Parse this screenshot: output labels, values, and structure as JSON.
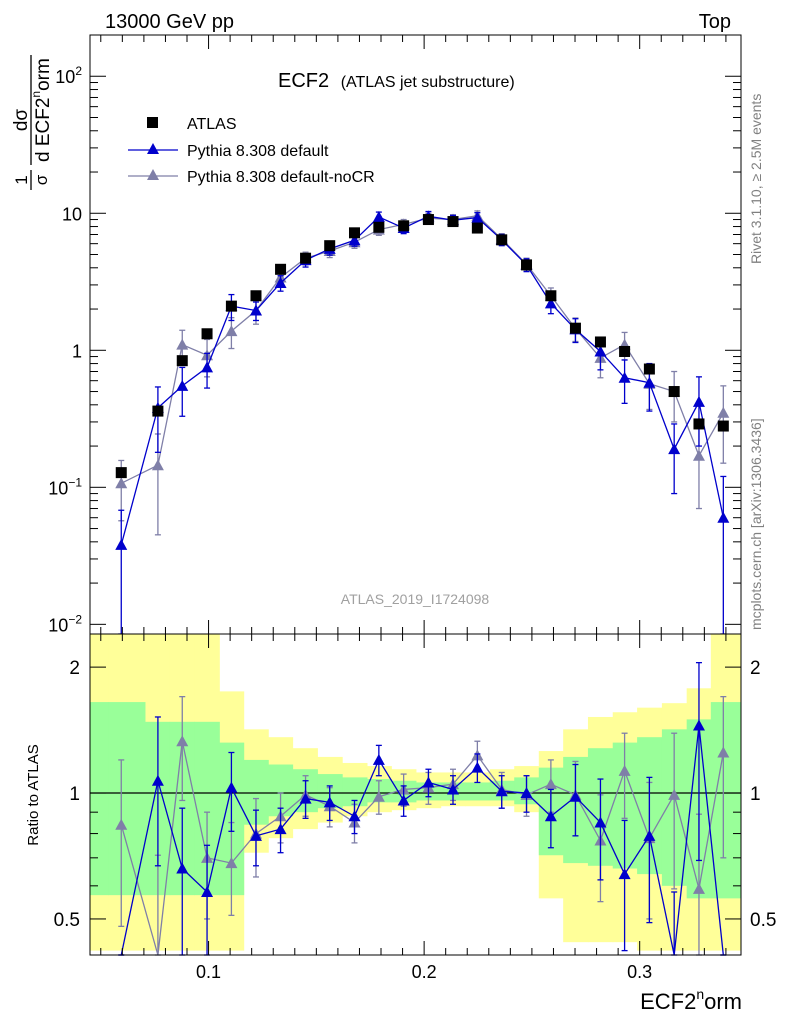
{
  "header": {
    "left": "13000 GeV pp",
    "right": "Top"
  },
  "side_labels": {
    "rivet": "Rivet 3.1.10, ≥ 2.5M events",
    "mcplots": "mcplots.cern.ch [arXiv:1306.3436]"
  },
  "title": {
    "main": "ECF2",
    "sub": "(ATLAS jet substructure)"
  },
  "analysis_id": "ATLAS_2019_I1724098",
  "legend": [
    {
      "label": "ATLAS",
      "marker": "square",
      "color": "#000000"
    },
    {
      "label": "Pythia 8.308 default",
      "marker": "triangle",
      "color": "#0000cc"
    },
    {
      "label": "Pythia 8.308 default-noCR",
      "marker": "triangle",
      "color": "#7f7fa8"
    }
  ],
  "chart_data": [
    {
      "type": "scatter",
      "panel": "main",
      "ylabel_parts": [
        "1",
        "σ",
        "dσ",
        "d ECF2",
        "n",
        "orm"
      ],
      "ylog": true,
      "xlim": [
        0.045,
        0.347
      ],
      "ylim": [
        0.0085,
        200
      ],
      "y_ticks": [
        {
          "v": 0.01,
          "base": "10",
          "exp": "−2"
        },
        {
          "v": 0.1,
          "base": "10",
          "exp": "−1"
        },
        {
          "v": 1,
          "base": "1",
          "exp": ""
        },
        {
          "v": 10,
          "base": "10",
          "exp": ""
        },
        {
          "v": 100,
          "base": "10",
          "exp": "2"
        }
      ],
      "series": [
        {
          "name": "ATLAS",
          "x": [
            0.0595,
            0.0765,
            0.0878,
            0.0993,
            0.1106,
            0.122,
            0.1334,
            0.145,
            0.1562,
            0.1677,
            0.179,
            0.1905,
            0.202,
            0.2134,
            0.2247,
            0.236,
            0.2475,
            0.2588,
            0.2702,
            0.2818,
            0.293,
            0.3045,
            0.316,
            0.3275,
            0.3388
          ],
          "values": [
            0.128,
            0.36,
            0.84,
            1.32,
            2.1,
            2.5,
            3.9,
            4.7,
            5.8,
            7.2,
            7.9,
            8.1,
            9.0,
            8.7,
            7.8,
            6.4,
            4.2,
            2.5,
            1.45,
            1.15,
            0.98,
            0.73,
            0.5,
            0.29,
            0.28
          ]
        },
        {
          "name": "Pythia 8.308 default",
          "x": [
            0.0595,
            0.0765,
            0.0878,
            0.0993,
            0.1106,
            0.122,
            0.1334,
            0.145,
            0.1562,
            0.1677,
            0.179,
            0.1905,
            0.202,
            0.2134,
            0.2247,
            0.236,
            0.2475,
            0.2588,
            0.2702,
            0.2818,
            0.293,
            0.3045,
            0.316,
            0.3275,
            0.3388
          ],
          "values": [
            0.038,
            0.38,
            0.55,
            0.75,
            2.1,
            1.95,
            3.1,
            4.55,
            5.5,
            6.35,
            9.4,
            7.8,
            9.5,
            8.9,
            9.3,
            6.4,
            4.2,
            2.2,
            1.42,
            0.98,
            0.63,
            0.58,
            0.19,
            0.42,
            0.06
          ],
          "yerr_low": [
            0.038,
            0.2,
            0.22,
            0.22,
            0.45,
            0.3,
            0.4,
            0.5,
            0.55,
            0.6,
            0.8,
            0.7,
            0.8,
            0.75,
            0.8,
            0.6,
            0.45,
            0.35,
            0.28,
            0.26,
            0.22,
            0.22,
            0.1,
            0.22,
            0.06
          ],
          "yerr_high": [
            0.03,
            0.16,
            0.2,
            0.2,
            0.45,
            0.3,
            0.4,
            0.5,
            0.55,
            0.6,
            0.8,
            0.7,
            0.8,
            0.75,
            0.8,
            0.6,
            0.45,
            0.35,
            0.28,
            0.26,
            0.22,
            0.22,
            0.1,
            0.22,
            0.06
          ]
        },
        {
          "name": "Pythia 8.308 default-noCR",
          "x": [
            0.0595,
            0.0765,
            0.0878,
            0.0993,
            0.1106,
            0.122,
            0.1334,
            0.145,
            0.1562,
            0.1677,
            0.179,
            0.1905,
            0.202,
            0.2134,
            0.2247,
            0.236,
            0.2475,
            0.2588,
            0.2702,
            0.2818,
            0.293,
            0.3045,
            0.316,
            0.3275,
            0.3388
          ],
          "values": [
            0.107,
            0.145,
            1.1,
            0.92,
            1.38,
            1.95,
            3.4,
            4.7,
            5.3,
            6.15,
            7.6,
            8.3,
            9.2,
            9.0,
            9.6,
            6.5,
            4.25,
            2.5,
            1.44,
            0.88,
            1.1,
            0.57,
            0.5,
            0.17,
            0.35
          ],
          "yerr_low": [
            0.05,
            0.1,
            0.3,
            0.28,
            0.35,
            0.4,
            0.45,
            0.5,
            0.55,
            0.6,
            0.7,
            0.7,
            0.8,
            0.75,
            0.8,
            0.6,
            0.45,
            0.35,
            0.28,
            0.25,
            0.25,
            0.2,
            0.2,
            0.1,
            0.2
          ],
          "yerr_high": [
            0.05,
            0.1,
            0.3,
            0.28,
            0.35,
            0.4,
            0.45,
            0.5,
            0.55,
            0.6,
            0.7,
            0.7,
            0.8,
            0.75,
            0.8,
            0.6,
            0.45,
            0.35,
            0.28,
            0.25,
            0.25,
            0.2,
            0.2,
            0.1,
            0.2
          ]
        }
      ]
    },
    {
      "type": "line",
      "panel": "ratio",
      "ylabel": "Ratio to ATLAS",
      "xlabel_parts": [
        "ECF2",
        "n",
        "orm"
      ],
      "ylog": true,
      "xlim": [
        0.045,
        0.347
      ],
      "ylim": [
        0.41,
        2.4
      ],
      "x_ticks": [
        0.1,
        0.2,
        0.3
      ],
      "x_tick_labels": [
        "0.1",
        "0.2",
        "0.3"
      ],
      "y_ticks": [
        0.5,
        1,
        2
      ],
      "y_tick_labels": [
        "0.5",
        "1",
        "2"
      ],
      "bands": {
        "edges": [
          0.045,
          0.0535,
          0.0705,
          0.082,
          0.0935,
          0.105,
          0.1163,
          0.1277,
          0.139,
          0.1505,
          0.162,
          0.1735,
          0.1848,
          0.1962,
          0.2077,
          0.219,
          0.2305,
          0.2418,
          0.2532,
          0.2645,
          0.276,
          0.2875,
          0.2988,
          0.3103,
          0.3218,
          0.333,
          0.347
        ],
        "yellow_low": [
          0.42,
          0.42,
          0.42,
          0.42,
          0.42,
          0.42,
          0.72,
          0.78,
          0.82,
          0.85,
          0.88,
          0.9,
          0.91,
          0.92,
          0.93,
          0.93,
          0.93,
          0.9,
          0.56,
          0.44,
          0.44,
          0.44,
          0.42,
          0.42,
          0.42,
          0.42
        ],
        "yellow_high": [
          2.4,
          2.4,
          2.4,
          2.4,
          2.4,
          1.75,
          1.42,
          1.36,
          1.28,
          1.22,
          1.18,
          1.16,
          1.14,
          1.12,
          1.12,
          1.12,
          1.14,
          1.16,
          1.26,
          1.42,
          1.52,
          1.56,
          1.6,
          1.64,
          1.78,
          2.4
        ],
        "green_low": [
          0.57,
          0.57,
          0.57,
          0.57,
          0.57,
          0.57,
          0.84,
          0.88,
          0.9,
          0.92,
          0.93,
          0.95,
          0.95,
          0.96,
          0.96,
          0.96,
          0.96,
          0.94,
          0.71,
          0.68,
          0.67,
          0.66,
          0.64,
          0.6,
          0.56,
          0.56
        ],
        "green_high": [
          1.65,
          1.65,
          1.48,
          1.48,
          1.48,
          1.32,
          1.2,
          1.17,
          1.14,
          1.11,
          1.09,
          1.08,
          1.07,
          1.06,
          1.06,
          1.06,
          1.07,
          1.09,
          1.15,
          1.22,
          1.28,
          1.32,
          1.36,
          1.42,
          1.5,
          1.65
        ]
      },
      "series": [
        {
          "name": "Pythia 8.308 default",
          "x": [
            0.0595,
            0.0765,
            0.0878,
            0.0993,
            0.1106,
            0.122,
            0.1334,
            0.145,
            0.1562,
            0.1677,
            0.179,
            0.1905,
            0.202,
            0.2134,
            0.2247,
            0.236,
            0.2475,
            0.2588,
            0.2702,
            0.2818,
            0.293,
            0.3045,
            0.316,
            0.3275,
            0.3388
          ],
          "values": [
            0.3,
            1.07,
            0.66,
            0.58,
            1.03,
            0.79,
            0.82,
            0.97,
            0.95,
            0.88,
            1.2,
            0.96,
            1.06,
            1.02,
            1.15,
            1.01,
            1.0,
            0.88,
            0.98,
            0.85,
            0.64,
            0.79,
            0.38,
            1.45,
            0.22
          ],
          "yerr_low": [
            0.1,
            0.4,
            0.26,
            0.17,
            0.22,
            0.12,
            0.1,
            0.1,
            0.09,
            0.08,
            0.1,
            0.08,
            0.08,
            0.08,
            0.09,
            0.09,
            0.1,
            0.14,
            0.19,
            0.23,
            0.22,
            0.3,
            0.2,
            0.76,
            0.1
          ],
          "yerr_high": [
            0.1,
            0.45,
            0.26,
            0.17,
            0.22,
            0.12,
            0.1,
            0.1,
            0.09,
            0.08,
            0.1,
            0.08,
            0.08,
            0.08,
            0.09,
            0.09,
            0.1,
            0.14,
            0.19,
            0.23,
            0.22,
            0.3,
            0.2,
            0.6,
            0.1
          ]
        },
        {
          "name": "Pythia 8.308 default-noCR",
          "x": [
            0.0595,
            0.0765,
            0.0878,
            0.0993,
            0.1106,
            0.122,
            0.1334,
            0.145,
            0.1562,
            0.1677,
            0.179,
            0.1905,
            0.202,
            0.2134,
            0.2247,
            0.236,
            0.2475,
            0.2588,
            0.2702,
            0.2818,
            0.293,
            0.3045,
            0.316,
            0.3275,
            0.3388
          ],
          "values": [
            0.84,
            0.41,
            1.33,
            0.7,
            0.68,
            0.8,
            0.88,
            0.99,
            0.93,
            0.85,
            0.98,
            1.02,
            1.03,
            1.05,
            1.23,
            1.02,
            0.99,
            1.05,
            0.99,
            0.77,
            1.13,
            0.78,
            0.99,
            0.59,
            1.25
          ],
          "yerr_low": [
            0.36,
            0.25,
            0.37,
            0.2,
            0.17,
            0.17,
            0.12,
            0.11,
            0.1,
            0.09,
            0.09,
            0.09,
            0.09,
            0.09,
            0.1,
            0.1,
            0.11,
            0.15,
            0.2,
            0.22,
            0.26,
            0.28,
            0.4,
            0.3,
            0.55
          ],
          "yerr_high": [
            0.36,
            0.3,
            0.37,
            0.2,
            0.17,
            0.17,
            0.12,
            0.11,
            0.1,
            0.09,
            0.09,
            0.09,
            0.09,
            0.09,
            0.1,
            0.1,
            0.11,
            0.15,
            0.2,
            0.22,
            0.26,
            0.28,
            0.4,
            0.3,
            0.45
          ]
        }
      ]
    }
  ],
  "colors": {
    "atlas": "#000000",
    "default": "#0000cc",
    "noCR": "#7f7fa8",
    "band_yellow": "#ffff99",
    "band_green": "#99ff99",
    "side_text": "#808080",
    "analysis_text": "#a0a0a0"
  }
}
